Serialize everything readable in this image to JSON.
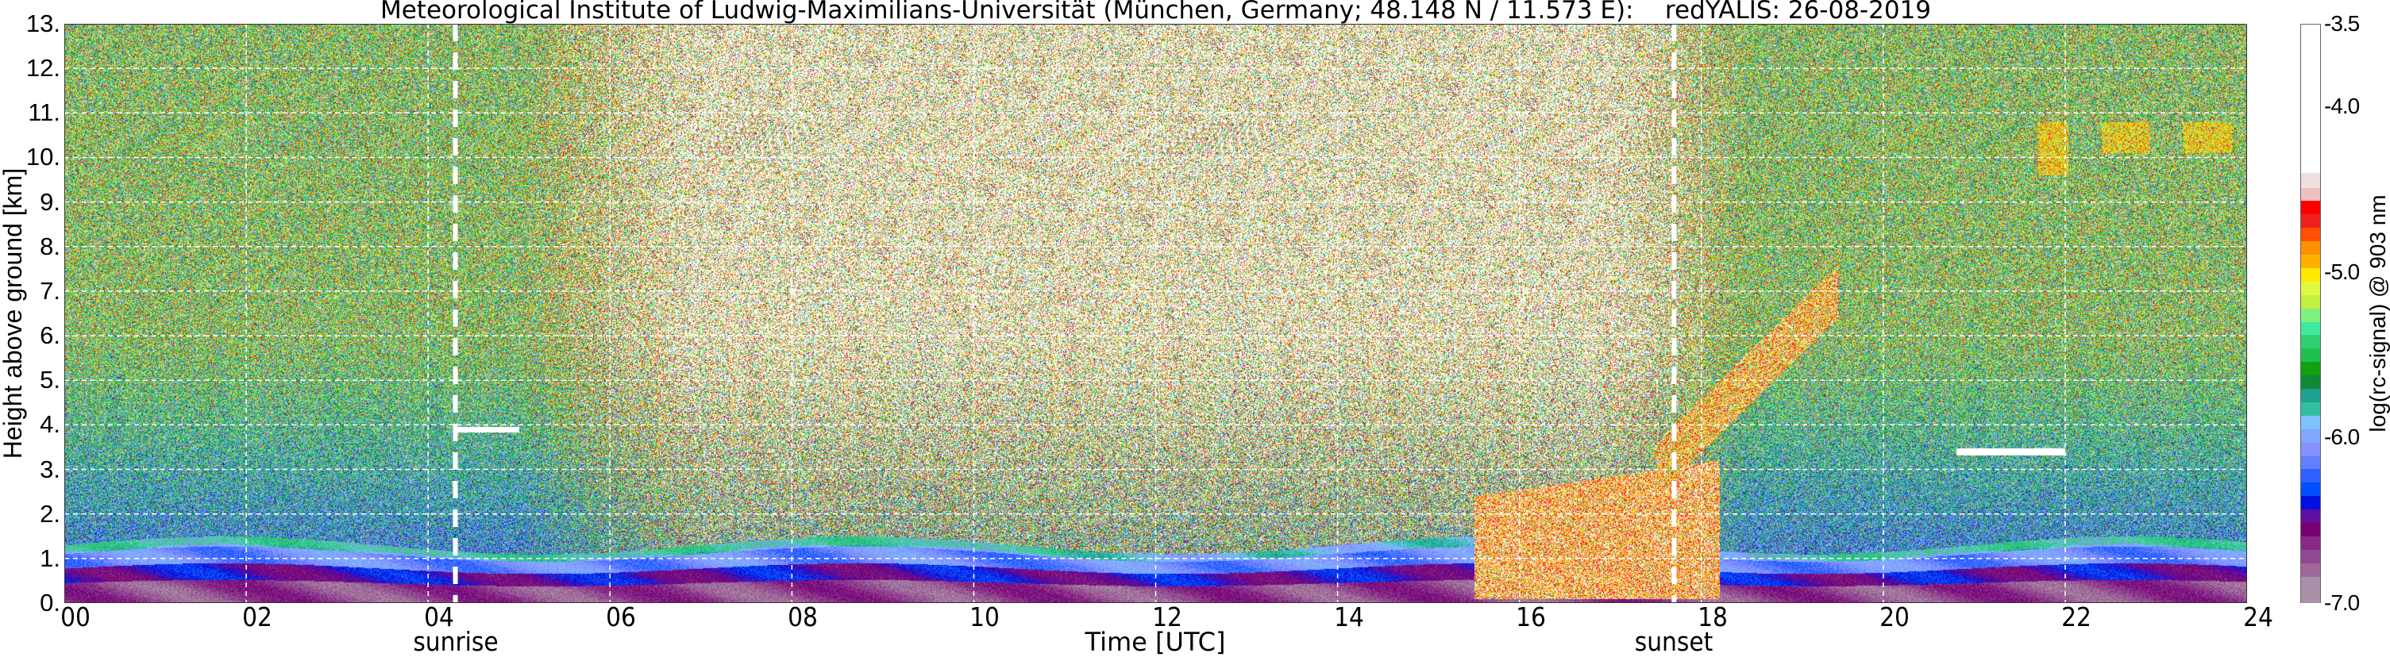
{
  "chart_data": {
    "type": "heatmap",
    "title": "Meteorological Institute of Ludwig-Maximilians-Universität (München, Germany; 48.148 N / 11.573 E):    redYALIS: 26-08-2019",
    "xlabel": "Time [UTC]",
    "ylabel": "Height above ground [km]",
    "xlim": [
      0,
      24
    ],
    "ylim": [
      0,
      13
    ],
    "x_ticks": [
      "00",
      "02",
      "04",
      "06",
      "08",
      "10",
      "12",
      "14",
      "16",
      "18",
      "20",
      "22",
      "24"
    ],
    "y_ticks": [
      "0.",
      "1.",
      "2.",
      "3.",
      "4.",
      "5.",
      "6.",
      "7.",
      "8.",
      "9.",
      "10.",
      "11.",
      "12.",
      "13."
    ],
    "grid": true,
    "annotations": [
      {
        "label": "sunrise",
        "time": 4.3
      },
      {
        "label": "sunset",
        "time": 17.7
      }
    ],
    "colorbar": {
      "label": "log(rc-signal) @ 903 nm",
      "range": [
        -7.0,
        -3.5
      ],
      "ticks": [
        "-3.5",
        "-4.0",
        "-5.0",
        "-6.0",
        "-7.0"
      ],
      "colors": [
        "#a890a8",
        "#a890a8",
        "#a06898",
        "#904890",
        "#882888",
        "#780070",
        "#6010a0",
        "#0010e0",
        "#0050ff",
        "#3060ff",
        "#6080ff",
        "#8890ff",
        "#80a8ff",
        "#80c0ff",
        "#30c0a0",
        "#20a090",
        "#108838",
        "#10a010",
        "#20c050",
        "#30d070",
        "#40e8a0",
        "#80f080",
        "#c0f040",
        "#e0f840",
        "#ffe800",
        "#ffb000",
        "#ff9000",
        "#ff5000",
        "#f02020",
        "#ff0000",
        "#f0c0c0",
        "#ece0e0",
        "#ffffff"
      ],
      "white_above": -4.4
    },
    "features": [
      {
        "desc": "boundary layer aerosol",
        "time": [
          0,
          24
        ],
        "height_km": [
          0,
          1.6
        ]
      },
      {
        "desc": "convective clouds",
        "time": [
          15.5,
          18.2
        ],
        "height_km": [
          0.1,
          3.0
        ]
      },
      {
        "desc": "rising cloud layer",
        "time": [
          17.5,
          19.5
        ],
        "height_km": [
          3.0,
          7.0
        ]
      },
      {
        "desc": "cloud",
        "time": [
          4.3,
          5.0
        ],
        "height_km": [
          3.8,
          4.0
        ]
      },
      {
        "desc": "cloud",
        "time": [
          20.8,
          22.0
        ],
        "height_km": [
          3.3,
          3.5
        ]
      },
      {
        "desc": "cirrus",
        "time": [
          21.7,
          24
        ],
        "height_km": [
          9.6,
          10.8
        ]
      }
    ]
  }
}
